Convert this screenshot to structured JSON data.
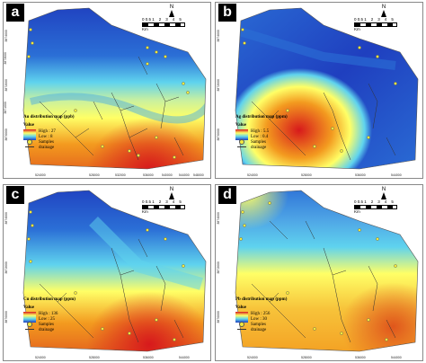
{
  "colors": {
    "high": "#d7191c",
    "orange": "#f39a1f",
    "yellow": "#ffff66",
    "cyan": "#5fd3ee",
    "blue": "#2b6fd6",
    "low": "#1f3fbf",
    "sample": "#f4ea3c",
    "drainage": "#333333"
  },
  "panels": [
    {
      "label": "a",
      "legend_title": "Au distribution map (ppb)",
      "value_label": "Value",
      "high": "High : 27",
      "low": "Low : 8",
      "samples": "Samples",
      "drainage": "drainage",
      "hotspot": "south"
    },
    {
      "label": "b",
      "legend_title": "Ag distribution map (ppm)",
      "value_label": "Value",
      "high": "High : 5.5",
      "low": "Low : 0.4",
      "samples": "Samples",
      "drainage": "drainage",
      "hotspot": "southwest"
    },
    {
      "label": "c",
      "legend_title": "Cu distribution map (ppm)",
      "value_label": "Value",
      "high": "High : 136",
      "low": "Low : 25",
      "samples": "Samples",
      "drainage": "drainage",
      "hotspot": "south"
    },
    {
      "label": "d",
      "legend_title": "Pb distribution map (ppm)",
      "value_label": "Value",
      "high": "High : 256",
      "low": "Low : 30",
      "samples": "Samples",
      "drainage": "drainage",
      "hotspot": "southeast"
    }
  ],
  "scale": {
    "ticks": [
      "0 0.5 1",
      "2",
      "3",
      "4",
      "5"
    ],
    "unit": "Km",
    "north": "N"
  },
  "coords_x": [
    "524000",
    "528000",
    "532000",
    "536000",
    "540000",
    "544000",
    "548000"
  ],
  "coords_y": [
    "3874000",
    "3873000",
    "3872000",
    "3871000",
    "3870000"
  ]
}
